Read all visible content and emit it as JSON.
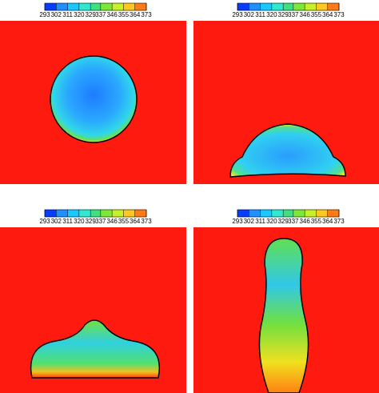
{
  "chart_data": [
    {
      "type": "contour",
      "colorbar": {
        "lim": [
          293,
          373
        ],
        "ticks": [
          293,
          302,
          311,
          320,
          329,
          337,
          346,
          355,
          364,
          373
        ],
        "colors": [
          "#0a3cff",
          "#1e90ff",
          "#19c8ff",
          "#30e8d0",
          "#40e080",
          "#7de83a",
          "#c8f028",
          "#ffc820",
          "#ff7a18"
        ]
      }
    },
    {
      "type": "contour",
      "colorbar": {
        "lim": [
          293,
          373
        ],
        "ticks": [
          293,
          302,
          311,
          320,
          329,
          337,
          346,
          355,
          364,
          373
        ],
        "colors": [
          "#0a3cff",
          "#1e90ff",
          "#19c8ff",
          "#30e8d0",
          "#40e080",
          "#7de83a",
          "#c8f028",
          "#ffc820",
          "#ff7a18"
        ]
      }
    },
    {
      "type": "contour",
      "colorbar": {
        "lim": [
          293,
          373
        ],
        "ticks": [
          293,
          302,
          311,
          320,
          329,
          337,
          346,
          355,
          364,
          373
        ],
        "colors": [
          "#0a3cff",
          "#1e90ff",
          "#19c8ff",
          "#30e8d0",
          "#40e080",
          "#7de83a",
          "#c8f028",
          "#ffc820",
          "#ff7a18"
        ]
      }
    },
    {
      "type": "contour",
      "colorbar": {
        "lim": [
          293,
          373
        ],
        "ticks": [
          293,
          302,
          311,
          320,
          329,
          337,
          346,
          355,
          364,
          373
        ],
        "colors": [
          "#0a3cff",
          "#1e90ff",
          "#19c8ff",
          "#30e8d0",
          "#40e080",
          "#7de83a",
          "#c8f028",
          "#ffc820",
          "#ff7a18"
        ]
      }
    }
  ]
}
